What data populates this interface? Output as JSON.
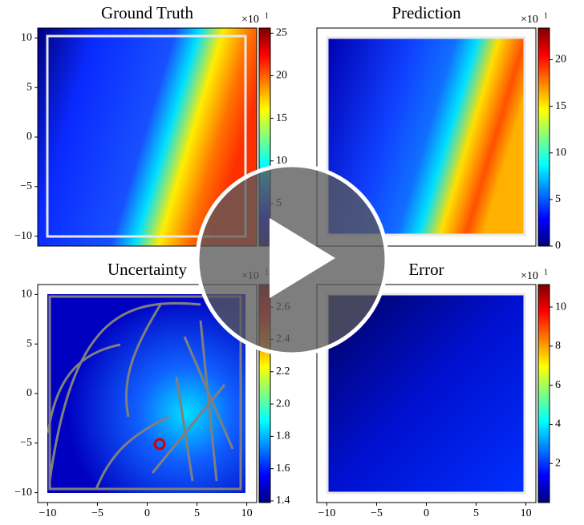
{
  "chart_data": [
    {
      "type": "heatmap",
      "title": "Ground Truth",
      "multiplier": "×10",
      "multiplier_exponent": "1",
      "xlim": [
        -11,
        11
      ],
      "ylim": [
        -11,
        11
      ],
      "yticks": [
        {
          "value": 10,
          "label": "10"
        },
        {
          "value": 5,
          "label": "5"
        },
        {
          "value": 0,
          "label": "0"
        },
        {
          "value": -5,
          "label": "−5"
        },
        {
          "value": -10,
          "label": "−10"
        }
      ],
      "clim": [
        0,
        25.6
      ],
      "cticks": [
        5,
        10,
        15,
        20,
        25
      ]
    },
    {
      "type": "heatmap",
      "title": "Prediction",
      "multiplier": "×10",
      "multiplier_exponent": "1",
      "xlim": [
        -11,
        11
      ],
      "ylim": [
        -11,
        11
      ],
      "clim": [
        0,
        23.4
      ],
      "cticks": [
        0,
        5,
        10,
        15,
        20
      ]
    },
    {
      "type": "heatmap",
      "title": "Uncertainty",
      "multiplier": "×10",
      "multiplier_exponent": "1",
      "xlim": [
        -11,
        11
      ],
      "ylim": [
        -11,
        11
      ],
      "xticks": [
        {
          "value": -10,
          "label": "−10"
        },
        {
          "value": -5,
          "label": "−5"
        },
        {
          "value": 0,
          "label": "0"
        },
        {
          "value": 5,
          "label": "5"
        },
        {
          "value": 10,
          "label": "10"
        }
      ],
      "yticks": [
        {
          "value": 10,
          "label": "10"
        },
        {
          "value": 5,
          "label": "5"
        },
        {
          "value": 0,
          "label": "0"
        },
        {
          "value": -5,
          "label": "−5"
        },
        {
          "value": -10,
          "label": "−10"
        }
      ],
      "clim": [
        1.39,
        2.74
      ],
      "cticks": [
        1.4,
        1.6,
        1.8,
        {
          "value": 2,
          "label": "2.0"
        },
        2.2,
        2.4,
        2.6
      ]
    },
    {
      "type": "heatmap",
      "title": "Error",
      "multiplier": "×10",
      "multiplier_exponent": "1",
      "xlim": [
        -11,
        11
      ],
      "ylim": [
        -11,
        11
      ],
      "xticks": [
        {
          "value": -10,
          "label": "−10"
        },
        {
          "value": -5,
          "label": "−5"
        },
        {
          "value": 0,
          "label": "0"
        },
        {
          "value": 5,
          "label": "5"
        },
        {
          "value": 10,
          "label": "10"
        }
      ],
      "clim": [
        0,
        11.15
      ],
      "cticks": [
        2,
        4,
        6,
        8,
        10
      ]
    }
  ]
}
